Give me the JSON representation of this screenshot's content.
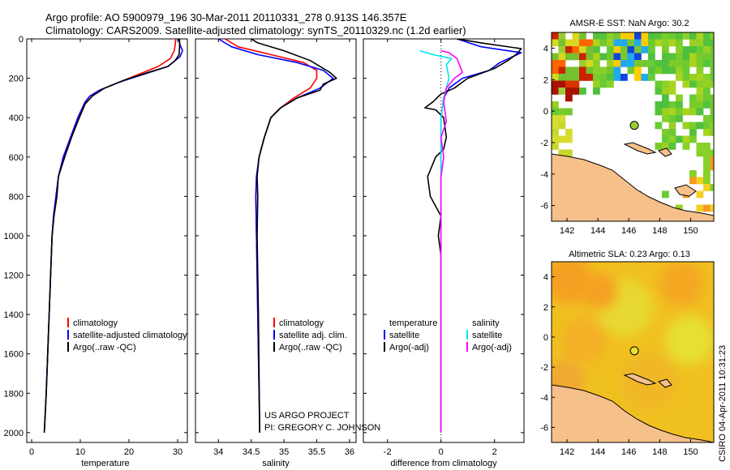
{
  "header": {
    "line1": "Argo profile: AO 5900979_196 30-Mar-2011 20110331_278 0.913S 146.357E",
    "line2": "Climatology: CARS2009. Satellite-adjusted climatology: synTS_20110329.nc (1.2d earlier)"
  },
  "colors": {
    "climatology": "#ff0000",
    "satellite": "#0000ff",
    "argo": "#000000",
    "satellite_salinity": "#00e5ee",
    "argo_adj_salinity": "#ff00ff",
    "land": "#f5c08a"
  },
  "chart_data": [
    {
      "type": "line",
      "xlabel": "temperature",
      "xlim": [
        -1,
        32
      ],
      "ylim": [
        2050,
        0
      ],
      "xticks": [
        "0",
        "10",
        "20",
        "30"
      ],
      "yticks": [
        "0",
        "200",
        "400",
        "600",
        "800",
        "1000",
        "1200",
        "1400",
        "1600",
        "1800",
        "2000"
      ],
      "legend": [
        "climatology",
        "satellite-adjusted climatology",
        "Argo(..raw -QC)"
      ],
      "series": [
        {
          "name": "climatology",
          "points": [
            [
              29.6,
              0
            ],
            [
              29.5,
              30
            ],
            [
              29.3,
              60
            ],
            [
              28.5,
              100
            ],
            [
              26,
              140
            ],
            [
              22,
              180
            ],
            [
              18,
              220
            ],
            [
              14,
              260
            ],
            [
              12,
              290
            ],
            [
              11,
              320
            ],
            [
              9.5,
              400
            ],
            [
              8,
              500
            ],
            [
              6.5,
              600
            ],
            [
              5.5,
              700
            ],
            [
              5,
              800
            ],
            [
              4.5,
              900
            ],
            [
              4.2,
              1000
            ],
            [
              3.9,
              1200
            ],
            [
              3.6,
              1400
            ],
            [
              3.3,
              1600
            ],
            [
              3,
              1800
            ],
            [
              2.6,
              2000
            ]
          ]
        },
        {
          "name": "satellite-adjusted climatology",
          "points": [
            [
              30.2,
              0
            ],
            [
              30.5,
              30
            ],
            [
              31,
              60
            ],
            [
              30.5,
              90
            ],
            [
              28,
              140
            ],
            [
              23,
              180
            ],
            [
              18,
              220
            ],
            [
              14,
              260
            ],
            [
              12,
              290
            ],
            [
              11,
              320
            ],
            [
              9.5,
              400
            ],
            [
              8,
              500
            ],
            [
              6.5,
              600
            ],
            [
              5.5,
              700
            ],
            [
              5,
              800
            ],
            [
              4.5,
              900
            ],
            [
              4.2,
              1000
            ],
            [
              3.9,
              1200
            ],
            [
              3.6,
              1400
            ],
            [
              3.3,
              1600
            ],
            [
              3,
              1800
            ],
            [
              2.6,
              2000
            ]
          ]
        },
        {
          "name": "Argo(..raw -QC)",
          "points": [
            [
              30.4,
              0
            ],
            [
              30.4,
              40
            ],
            [
              30.3,
              80
            ],
            [
              29.5,
              110
            ],
            [
              28,
              140
            ],
            [
              24,
              170
            ],
            [
              19,
              210
            ],
            [
              15,
              250
            ],
            [
              12.5,
              290
            ],
            [
              11,
              330
            ],
            [
              9.8,
              400
            ],
            [
              8.2,
              500
            ],
            [
              6.8,
              600
            ],
            [
              5.5,
              700
            ],
            [
              5.2,
              800
            ],
            [
              4.6,
              900
            ],
            [
              4.2,
              1000
            ],
            [
              3.9,
              1200
            ],
            [
              3.6,
              1400
            ],
            [
              3.3,
              1600
            ],
            [
              3,
              1800
            ],
            [
              2.6,
              2000
            ]
          ]
        }
      ]
    },
    {
      "type": "line",
      "xlabel": "salinity",
      "xlim": [
        33.65,
        36.1
      ],
      "ylim": [
        2050,
        0
      ],
      "xticks": [
        "34",
        "34.5",
        "35",
        "35.5",
        "36"
      ],
      "yticks": [],
      "legend": [
        "climatology",
        "satellite adj. clim.",
        "Argo(..raw -QC)"
      ],
      "annotation": [
        "US ARGO PROJECT",
        "PI: GREGORY C. JOHNSON"
      ],
      "series": [
        {
          "name": "climatology",
          "points": [
            [
              34.1,
              0
            ],
            [
              34.3,
              40
            ],
            [
              34.8,
              80
            ],
            [
              35.3,
              120
            ],
            [
              35.5,
              160
            ],
            [
              35.5,
              200
            ],
            [
              35.4,
              250
            ],
            [
              35.15,
              300
            ],
            [
              34.95,
              350
            ],
            [
              34.8,
              400
            ],
            [
              34.7,
              500
            ],
            [
              34.62,
              600
            ],
            [
              34.58,
              700
            ],
            [
              34.57,
              800
            ],
            [
              34.58,
              1000
            ],
            [
              34.6,
              1400
            ],
            [
              34.63,
              2000
            ]
          ]
        },
        {
          "name": "satellite adj. clim.",
          "points": [
            [
              34.0,
              0
            ],
            [
              34.2,
              40
            ],
            [
              34.6,
              80
            ],
            [
              35.2,
              120
            ],
            [
              35.6,
              160
            ],
            [
              35.75,
              200
            ],
            [
              35.55,
              250
            ],
            [
              35.2,
              300
            ],
            [
              34.95,
              350
            ],
            [
              34.8,
              400
            ],
            [
              34.7,
              500
            ],
            [
              34.62,
              600
            ],
            [
              34.58,
              700
            ],
            [
              34.57,
              800
            ],
            [
              34.58,
              1000
            ],
            [
              34.6,
              1400
            ],
            [
              34.63,
              2000
            ]
          ]
        },
        {
          "name": "Argo(..raw -QC)",
          "points": [
            [
              34.5,
              0
            ],
            [
              34.6,
              20
            ],
            [
              35.0,
              60
            ],
            [
              35.4,
              110
            ],
            [
              35.6,
              150
            ],
            [
              35.7,
              170
            ],
            [
              35.8,
              200
            ],
            [
              35.6,
              230
            ],
            [
              35.55,
              260
            ],
            [
              35.2,
              300
            ],
            [
              34.95,
              350
            ],
            [
              34.8,
              400
            ],
            [
              34.7,
              500
            ],
            [
              34.62,
              600
            ],
            [
              34.59,
              700
            ],
            [
              34.6,
              800
            ],
            [
              34.59,
              1000
            ],
            [
              34.61,
              1400
            ],
            [
              34.63,
              2000
            ]
          ]
        }
      ]
    },
    {
      "type": "line",
      "xlabel": "difference from climatology",
      "xlim": [
        -2.9,
        3.1
      ],
      "ylim": [
        2050,
        0
      ],
      "xticks": [
        "-2",
        "0",
        "2"
      ],
      "yticks": [],
      "legend_temperature_title": "temperature",
      "legend_salinity_title": "salinity",
      "legend": [
        "satellite",
        "Argo(-adj)",
        "satellite",
        "Argo(-adj)"
      ],
      "series": [
        {
          "name": "temperature satellite",
          "points": [
            [
              0.6,
              0
            ],
            [
              1.5,
              40
            ],
            [
              3,
              70
            ],
            [
              2.2,
              120
            ],
            [
              1.8,
              160
            ],
            [
              0.8,
              200
            ],
            [
              0.3,
              250
            ],
            [
              0.1,
              300
            ],
            [
              0,
              400
            ],
            [
              0,
              600
            ],
            [
              0,
              1000
            ],
            [
              0,
              2000
            ]
          ]
        },
        {
          "name": "temperature Argo(-adj)",
          "points": [
            [
              0.6,
              0
            ],
            [
              1.5,
              20
            ],
            [
              3,
              50
            ],
            [
              2.8,
              80
            ],
            [
              2.5,
              110
            ],
            [
              2.0,
              150
            ],
            [
              1.0,
              200
            ],
            [
              0.8,
              220
            ],
            [
              0.5,
              250
            ],
            [
              0,
              280
            ],
            [
              -0.3,
              320
            ],
            [
              -0.6,
              350
            ],
            [
              -0.2,
              360
            ],
            [
              0.1,
              400
            ],
            [
              0.2,
              500
            ],
            [
              0.1,
              560
            ],
            [
              -0.2,
              600
            ],
            [
              -0.5,
              700
            ],
            [
              -0.4,
              800
            ],
            [
              -0.2,
              850
            ],
            [
              0,
              900
            ],
            [
              -0.1,
              1000
            ],
            [
              0,
              1100
            ],
            [
              0,
              2000
            ]
          ]
        },
        {
          "name": "salinity satellite",
          "points": [
            [
              -0.8,
              60
            ],
            [
              -0.3,
              80
            ],
            [
              0.4,
              100
            ],
            [
              0.2,
              130
            ],
            [
              0.3,
              200
            ],
            [
              0.1,
              300
            ],
            [
              0,
              400
            ],
            [
              0,
              600
            ],
            [
              0,
              2000
            ]
          ]
        },
        {
          "name": "salinity Argo(-adj)",
          "points": [
            [
              0,
              60
            ],
            [
              0.3,
              70
            ],
            [
              0.6,
              100
            ],
            [
              0.8,
              170
            ],
            [
              0.5,
              200
            ],
            [
              0.2,
              250
            ],
            [
              0.1,
              320
            ],
            [
              0.2,
              420
            ],
            [
              0,
              500
            ],
            [
              0.1,
              600
            ],
            [
              0,
              700
            ],
            [
              0,
              2000
            ]
          ]
        }
      ]
    },
    {
      "type": "heatmap",
      "title": "AMSR-E SST: NaN Argo: 30.2",
      "xlim": [
        141,
        151.5
      ],
      "ylim": [
        -7,
        5
      ],
      "xticks": [
        "142",
        "144",
        "146",
        "148",
        "150"
      ],
      "yticks": [
        "4",
        "2",
        "0",
        "-2",
        "-4",
        "-6"
      ],
      "argo_position": [
        146.36,
        -0.91
      ]
    },
    {
      "type": "heatmap",
      "title": "Altimetric SLA: 0.23 Argo: 0.13",
      "xlim": [
        141,
        151.5
      ],
      "ylim": [
        -7,
        5
      ],
      "xticks": [
        "142",
        "144",
        "146",
        "148",
        "150"
      ],
      "yticks": [
        "4",
        "2",
        "0",
        "-2",
        "-4",
        "-6"
      ],
      "argo_position": [
        146.36,
        -0.91
      ]
    }
  ],
  "side_label": "CSIRO 04-Apr-2011 10:31:23"
}
